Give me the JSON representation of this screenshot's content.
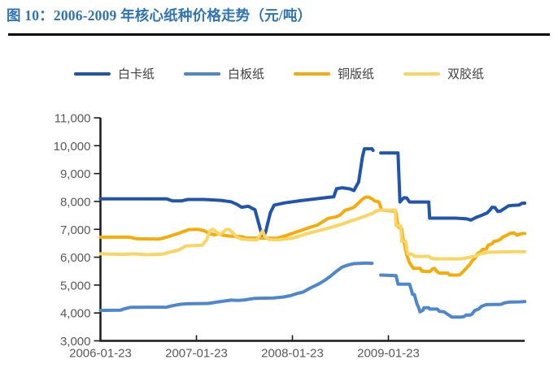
{
  "figure": {
    "title": "图 10：2006-2009 年核心纸种价格走势（元/吨）"
  },
  "colors": {
    "title_blue": "#2E74B5",
    "axis_label_gray": "#595959",
    "axis_line": "#1a1a1a",
    "divider_black": "#000000"
  },
  "chart_data": {
    "type": "line",
    "title": "2006-2009 年核心纸种价格走势（元/吨）",
    "unit": "元/吨",
    "legend_position": "top",
    "grid": false,
    "y_axis": {
      "min": 3000,
      "max": 11000,
      "step": 1000,
      "tick_labels": [
        "3,000",
        "4,000",
        "5,000",
        "6,000",
        "7,000",
        "8,000",
        "9,000",
        "10,000",
        "11,000"
      ]
    },
    "x_axis": {
      "tick_labels": [
        "2006-01-23",
        "2007-01-23",
        "2008-01-23",
        "2009-01-23"
      ],
      "tick_t": [
        0,
        1,
        2,
        3
      ],
      "t_end": 4.42,
      "t_unit": "years since 2006-01-23"
    },
    "series": [
      {
        "id": "baikazhi",
        "name": "白卡纸",
        "color": "#1F55AD",
        "segments": [
          [
            [
              0,
              8090
            ],
            [
              0.69,
              8090
            ],
            [
              0.75,
              8020
            ],
            [
              0.84,
              8020
            ],
            [
              0.91,
              8070
            ],
            [
              1.08,
              8070
            ],
            [
              1.25,
              8040
            ],
            [
              1.36,
              7990
            ],
            [
              1.42,
              7900
            ],
            [
              1.47,
              7790
            ],
            [
              1.54,
              7830
            ],
            [
              1.61,
              7700
            ],
            [
              1.69,
              6690
            ],
            [
              1.72,
              6900
            ],
            [
              1.77,
              7600
            ],
            [
              1.81,
              7870
            ],
            [
              1.92,
              7950
            ],
            [
              2.09,
              8030
            ],
            [
              2.26,
              8100
            ],
            [
              2.41,
              8160
            ],
            [
              2.43,
              8160
            ],
            [
              2.46,
              8460
            ],
            [
              2.52,
              8490
            ],
            [
              2.6,
              8450
            ],
            [
              2.64,
              8390
            ],
            [
              2.69,
              8700
            ],
            [
              2.73,
              9600
            ],
            [
              2.75,
              9890
            ],
            [
              2.83,
              9890
            ],
            [
              2.84,
              9830
            ]
          ],
          [
            [
              2.92,
              9740
            ],
            [
              3.1,
              9740
            ],
            [
              3.12,
              7980
            ],
            [
              3.14,
              8060
            ],
            [
              3.16,
              8130
            ],
            [
              3.19,
              8130
            ],
            [
              3.22,
              7980
            ],
            [
              3.42,
              7980
            ],
            [
              3.43,
              7400
            ],
            [
              3.7,
              7400
            ],
            [
              3.81,
              7380
            ],
            [
              3.86,
              7330
            ],
            [
              3.92,
              7440
            ],
            [
              3.97,
              7500
            ],
            [
              4.03,
              7590
            ],
            [
              4.06,
              7700
            ],
            [
              4.08,
              7790
            ],
            [
              4.11,
              7780
            ],
            [
              4.14,
              7640
            ],
            [
              4.17,
              7660
            ],
            [
              4.21,
              7750
            ],
            [
              4.25,
              7840
            ],
            [
              4.3,
              7860
            ],
            [
              4.36,
              7870
            ],
            [
              4.39,
              7930
            ],
            [
              4.42,
              7940
            ]
          ]
        ]
      },
      {
        "id": "baibanzhi",
        "name": "白板纸",
        "color": "#4E87CC",
        "segments": [
          [
            [
              0,
              4090
            ],
            [
              0.21,
              4100
            ],
            [
              0.25,
              4150
            ],
            [
              0.31,
              4200
            ],
            [
              0.69,
              4210
            ],
            [
              0.75,
              4260
            ],
            [
              0.81,
              4300
            ],
            [
              0.89,
              4330
            ],
            [
              1.12,
              4340
            ],
            [
              1.23,
              4400
            ],
            [
              1.36,
              4460
            ],
            [
              1.44,
              4450
            ],
            [
              1.5,
              4470
            ],
            [
              1.6,
              4520
            ],
            [
              1.8,
              4540
            ],
            [
              1.9,
              4570
            ],
            [
              1.98,
              4620
            ],
            [
              2.05,
              4700
            ],
            [
              2.11,
              4750
            ],
            [
              2.19,
              4900
            ],
            [
              2.28,
              5050
            ],
            [
              2.35,
              5200
            ],
            [
              2.4,
              5330
            ],
            [
              2.46,
              5500
            ],
            [
              2.52,
              5650
            ],
            [
              2.58,
              5720
            ],
            [
              2.64,
              5770
            ],
            [
              2.77,
              5790
            ],
            [
              2.83,
              5780
            ]
          ],
          [
            [
              2.92,
              5360
            ],
            [
              3.08,
              5340
            ],
            [
              3.1,
              5030
            ],
            [
              3.22,
              5030
            ],
            [
              3.24,
              4820
            ],
            [
              3.25,
              4670
            ],
            [
              3.27,
              4660
            ],
            [
              3.3,
              4300
            ],
            [
              3.31,
              4240
            ],
            [
              3.33,
              4040
            ],
            [
              3.36,
              4100
            ],
            [
              3.37,
              4190
            ],
            [
              3.42,
              4190
            ],
            [
              3.43,
              4140
            ],
            [
              3.51,
              4140
            ],
            [
              3.53,
              4060
            ],
            [
              3.58,
              4040
            ],
            [
              3.6,
              3990
            ],
            [
              3.64,
              3900
            ],
            [
              3.66,
              3850
            ],
            [
              3.75,
              3850
            ],
            [
              3.79,
              3870
            ],
            [
              3.81,
              3930
            ],
            [
              3.85,
              3920
            ],
            [
              3.87,
              3960
            ],
            [
              3.9,
              4090
            ],
            [
              3.94,
              4140
            ],
            [
              3.97,
              4240
            ],
            [
              4.02,
              4300
            ],
            [
              4.17,
              4310
            ],
            [
              4.21,
              4360
            ],
            [
              4.26,
              4390
            ],
            [
              4.38,
              4400
            ],
            [
              4.42,
              4410
            ]
          ]
        ]
      },
      {
        "id": "tongbanzhi",
        "name": "铜版纸",
        "color": "#F5AC0B",
        "segments": [
          [
            [
              0,
              6720
            ],
            [
              0.3,
              6720
            ],
            [
              0.38,
              6660
            ],
            [
              0.61,
              6650
            ],
            [
              0.69,
              6720
            ],
            [
              0.81,
              6850
            ],
            [
              0.92,
              6990
            ],
            [
              1.02,
              7000
            ],
            [
              1.08,
              6950
            ],
            [
              1.14,
              6840
            ],
            [
              1.19,
              6800
            ],
            [
              1.23,
              6850
            ],
            [
              1.28,
              6790
            ],
            [
              1.36,
              6750
            ],
            [
              1.47,
              6740
            ],
            [
              1.52,
              6690
            ],
            [
              1.84,
              6680
            ],
            [
              1.94,
              6780
            ],
            [
              2.03,
              6890
            ],
            [
              2.11,
              6980
            ],
            [
              2.19,
              7080
            ],
            [
              2.26,
              7150
            ],
            [
              2.32,
              7280
            ],
            [
              2.37,
              7390
            ],
            [
              2.41,
              7420
            ],
            [
              2.45,
              7440
            ],
            [
              2.5,
              7520
            ],
            [
              2.55,
              7690
            ],
            [
              2.58,
              7710
            ],
            [
              2.64,
              7790
            ],
            [
              2.69,
              7950
            ],
            [
              2.73,
              8080
            ],
            [
              2.76,
              8150
            ],
            [
              2.8,
              8150
            ],
            [
              2.83,
              8090
            ],
            [
              2.86,
              8010
            ],
            [
              2.9,
              7990
            ],
            [
              2.92,
              7790
            ],
            [
              2.93,
              7690
            ],
            [
              3.07,
              7650
            ],
            [
              3.08,
              7590
            ],
            [
              3.1,
              7100
            ],
            [
              3.14,
              7000
            ],
            [
              3.15,
              6700
            ],
            [
              3.17,
              6430
            ],
            [
              3.19,
              6100
            ],
            [
              3.22,
              5800
            ],
            [
              3.25,
              5650
            ],
            [
              3.26,
              5600
            ],
            [
              3.33,
              5600
            ],
            [
              3.35,
              5500
            ],
            [
              3.43,
              5480
            ],
            [
              3.46,
              5580
            ],
            [
              3.48,
              5600
            ],
            [
              3.51,
              5470
            ],
            [
              3.53,
              5430
            ],
            [
              3.62,
              5430
            ],
            [
              3.64,
              5360
            ],
            [
              3.74,
              5360
            ],
            [
              3.77,
              5450
            ],
            [
              3.81,
              5600
            ],
            [
              3.85,
              5750
            ],
            [
              3.88,
              5900
            ],
            [
              3.9,
              5950
            ],
            [
              3.93,
              6130
            ],
            [
              3.96,
              6190
            ],
            [
              3.98,
              6280
            ],
            [
              4.02,
              6300
            ],
            [
              4.04,
              6430
            ],
            [
              4.08,
              6480
            ],
            [
              4.1,
              6570
            ],
            [
              4.14,
              6590
            ],
            [
              4.17,
              6650
            ],
            [
              4.19,
              6720
            ],
            [
              4.24,
              6800
            ],
            [
              4.27,
              6860
            ],
            [
              4.31,
              6870
            ],
            [
              4.34,
              6790
            ],
            [
              4.36,
              6820
            ],
            [
              4.4,
              6850
            ],
            [
              4.42,
              6850
            ]
          ]
        ]
      },
      {
        "id": "shuangjiaozhi",
        "name": "双胶纸",
        "color": "#FBD563",
        "segments": [
          [
            [
              0,
              6120
            ],
            [
              0.23,
              6100
            ],
            [
              0.36,
              6120
            ],
            [
              0.48,
              6090
            ],
            [
              0.65,
              6110
            ],
            [
              0.74,
              6200
            ],
            [
              0.81,
              6250
            ],
            [
              0.89,
              6400
            ],
            [
              1.06,
              6430
            ],
            [
              1.11,
              6650
            ],
            [
              1.14,
              6940
            ],
            [
              1.17,
              7000
            ],
            [
              1.2,
              6930
            ],
            [
              1.24,
              6820
            ],
            [
              1.26,
              6850
            ],
            [
              1.31,
              6990
            ],
            [
              1.34,
              7000
            ],
            [
              1.38,
              6870
            ],
            [
              1.42,
              6720
            ],
            [
              1.47,
              6650
            ],
            [
              1.54,
              6630
            ],
            [
              1.63,
              6620
            ],
            [
              1.66,
              6780
            ],
            [
              1.69,
              6950
            ],
            [
              1.71,
              6750
            ],
            [
              1.75,
              6640
            ],
            [
              1.84,
              6620
            ],
            [
              1.92,
              6650
            ],
            [
              2.01,
              6690
            ],
            [
              2.09,
              6780
            ],
            [
              2.18,
              6870
            ],
            [
              2.26,
              6940
            ],
            [
              2.35,
              7020
            ],
            [
              2.43,
              7100
            ],
            [
              2.52,
              7190
            ],
            [
              2.6,
              7290
            ],
            [
              2.69,
              7390
            ],
            [
              2.77,
              7490
            ],
            [
              2.83,
              7560
            ],
            [
              2.87,
              7650
            ],
            [
              2.91,
              7690
            ],
            [
              3.07,
              7690
            ],
            [
              3.08,
              7130
            ],
            [
              3.13,
              7130
            ],
            [
              3.14,
              6570
            ],
            [
              3.18,
              6570
            ],
            [
              3.2,
              6130
            ],
            [
              3.25,
              6100
            ],
            [
              3.27,
              6030
            ],
            [
              3.42,
              6030
            ],
            [
              3.45,
              5960
            ],
            [
              3.49,
              5940
            ],
            [
              3.75,
              5940
            ],
            [
              3.81,
              5970
            ],
            [
              3.86,
              6010
            ],
            [
              3.91,
              6040
            ],
            [
              3.96,
              6130
            ],
            [
              4.01,
              6160
            ],
            [
              4.06,
              6180
            ],
            [
              4.21,
              6190
            ],
            [
              4.42,
              6200
            ]
          ]
        ]
      }
    ]
  }
}
